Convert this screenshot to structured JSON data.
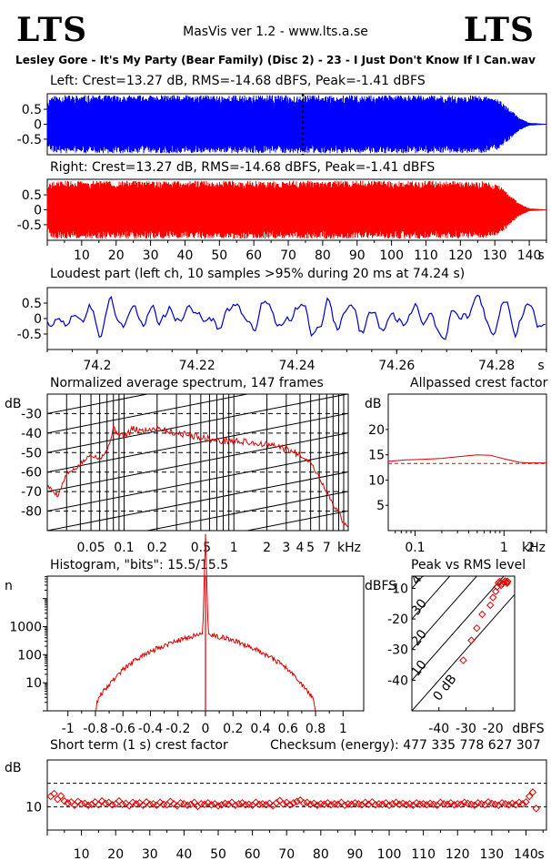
{
  "header": {
    "logo_left": "LTS",
    "logo_right": "LTS",
    "app_version": "MasVis ver 1.2 - www.lts.a.se",
    "file_title": "Lesley Gore - It's My Party (Bear Family) (Disc 2) - 23 - I Just Don't Know If I Can.wav"
  },
  "labels": {
    "left": "Left: Crest=13.27 dB, RMS=-14.68 dBFS, Peak=-1.41 dBFS",
    "right": "Right: Crest=13.27 dB, RMS=-14.68 dBFS, Peak=-1.41 dBFS",
    "loudest": "Loudest part (left  ch, 10 samples >95% during 20 ms at 74.24 s)",
    "spectrum": "Normalized average spectrum, 147 frames",
    "allpass": "Allpassed crest factor",
    "histogram": "Histogram, \"bits\": 15.5/15.5",
    "peakrms": "Peak vs RMS level",
    "shortterm": "Short term (1 s) crest factor",
    "checksum": "Checksum (energy):   477 335 778 627 307"
  },
  "colors": {
    "left": "#0000ff",
    "right": "#ff0000",
    "loudest": "#0000cc",
    "red_line": "#dd0000"
  },
  "chart_data": [
    {
      "id": "left_waveform",
      "type": "area",
      "ylim": [
        -1,
        1
      ],
      "yticks": [
        "0.5",
        "0",
        "-0.5"
      ],
      "xlim_s": [
        0,
        145
      ],
      "marker_s": 74.24,
      "envelope": {
        "x": [
          0,
          1,
          5,
          20,
          60,
          100,
          126,
          131,
          134,
          137,
          140,
          145
        ],
        "amp": [
          0.7,
          0.95,
          0.97,
          0.97,
          0.97,
          0.97,
          0.96,
          0.85,
          0.55,
          0.22,
          0.05,
          0.01
        ]
      }
    },
    {
      "id": "right_waveform",
      "type": "area",
      "ylim": [
        -1,
        1
      ],
      "yticks": [
        "0.5",
        "0",
        "-0.5"
      ],
      "xlim_s": [
        0,
        145
      ],
      "xticks": [
        "10",
        "20",
        "30",
        "40",
        "50",
        "60",
        "70",
        "80",
        "90",
        "100",
        "110",
        "120",
        "130",
        "140"
      ],
      "xunit": "s",
      "envelope": {
        "x": [
          0,
          1,
          5,
          20,
          60,
          100,
          126,
          131,
          134,
          137,
          140,
          145
        ],
        "amp": [
          0.7,
          0.95,
          0.97,
          0.97,
          0.97,
          0.97,
          0.96,
          0.85,
          0.55,
          0.22,
          0.05,
          0.01
        ]
      }
    },
    {
      "id": "loudest_part",
      "type": "line",
      "ylim": [
        -1,
        1
      ],
      "yticks": [
        "0.5",
        "0",
        "-0.5"
      ],
      "xlim_s": [
        74.19,
        74.29
      ],
      "xticks": [
        "74.2",
        "74.22",
        "74.24",
        "74.26",
        "74.28"
      ],
      "xunit": "s"
    },
    {
      "id": "spectrum",
      "type": "line",
      "xscale": "log",
      "xunit": "kHz",
      "yunit": "dB",
      "xlim_khz": [
        0.02,
        11
      ],
      "ylim": [
        -90,
        -20
      ],
      "yticks": [
        "-30",
        "-40",
        "-50",
        "-60",
        "-70",
        "-80"
      ],
      "xticks": [
        "0.05",
        "0.1",
        "0.2",
        "0.5",
        "1",
        "2",
        "3",
        "4",
        "5",
        "7"
      ],
      "x": [
        0.02,
        0.025,
        0.03,
        0.035,
        0.04,
        0.05,
        0.06,
        0.07,
        0.08,
        0.1,
        0.12,
        0.15,
        0.2,
        0.25,
        0.3,
        0.4,
        0.5,
        0.7,
        1,
        1.5,
        2,
        2.5,
        3,
        3.5,
        4,
        5,
        6,
        7,
        8,
        9,
        10
      ],
      "y": [
        -67,
        -72,
        -61,
        -59,
        -56,
        -51,
        -53,
        -49,
        -38,
        -42,
        -38,
        -39,
        -37,
        -39,
        -40,
        -41,
        -42,
        -44,
        -44,
        -45,
        -46,
        -47,
        -48,
        -50,
        -51,
        -55,
        -63,
        -70,
        -77,
        -80,
        -87
      ]
    },
    {
      "id": "allpass_crest",
      "type": "line",
      "xscale": "log",
      "xunit": "kHz",
      "yunit": "dB",
      "xlim_khz": [
        0.05,
        3
      ],
      "ylim": [
        0,
        27
      ],
      "yticks": [
        "20",
        "15",
        "10",
        "5"
      ],
      "xticks": [
        "0.1",
        "1",
        "2"
      ],
      "reference": 13.27,
      "x": [
        0.05,
        0.08,
        0.12,
        0.2,
        0.3,
        0.5,
        0.7,
        1.0,
        1.5,
        2.0,
        3.0
      ],
      "y": [
        13.7,
        14.0,
        14.1,
        14.3,
        14.6,
        15.0,
        14.9,
        14.2,
        13.5,
        13.4,
        13.4
      ]
    },
    {
      "id": "histogram",
      "type": "line",
      "yscale": "log",
      "xlim": [
        -1.15,
        1.15
      ],
      "ylim_log": [
        0,
        4.8
      ],
      "yunit": "n",
      "yticks": [
        "1000",
        "100",
        "10"
      ],
      "xticks": [
        "-1",
        "-0.8",
        "-0.6",
        "-0.4",
        "-0.2",
        "0",
        "0.2",
        "0.4",
        "0.6",
        "0.8",
        "1"
      ],
      "x": [
        -0.8,
        -0.78,
        -0.7,
        -0.6,
        -0.5,
        -0.4,
        -0.3,
        -0.2,
        -0.1,
        -0.02,
        0,
        0.02,
        0.1,
        0.2,
        0.3,
        0.4,
        0.5,
        0.6,
        0.7,
        0.78,
        0.8
      ],
      "y": [
        1,
        3,
        9,
        30,
        70,
        130,
        220,
        330,
        450,
        560,
        2000000,
        560,
        450,
        330,
        220,
        130,
        70,
        30,
        9,
        3,
        1
      ]
    },
    {
      "id": "peak_vs_rms",
      "type": "scatter",
      "xunit": "dBFS",
      "yunit": "dBFS",
      "xlim": [
        -50,
        -12
      ],
      "ylim": [
        -50,
        -6
      ],
      "xticks": [
        "-40",
        "-30",
        "-20"
      ],
      "yticks": [
        "-10",
        "-20",
        "-30",
        "-40"
      ],
      "diagonals": [
        "0 dB",
        "10",
        "20",
        "30",
        "40"
      ],
      "x": [
        -31,
        -28,
        -26,
        -24,
        -21,
        -20,
        -19,
        -18.5,
        -18,
        -17.5,
        -17,
        -16.5,
        -16,
        -15.5,
        -15,
        -14.8,
        -14.6
      ],
      "y": [
        -33.5,
        -27,
        -23,
        -18.5,
        -15.5,
        -13,
        -11,
        -9.5,
        -8.2,
        -7.8,
        -9,
        -8.5,
        -8,
        -7.6,
        -7.9,
        -8.3,
        -7.7
      ]
    },
    {
      "id": "short_term_crest",
      "type": "scatter",
      "yunit": "dB",
      "xlim_s": [
        0,
        146
      ],
      "ylim": [
        5,
        20
      ],
      "yticks": [
        "10"
      ],
      "dashed": [
        15,
        10
      ],
      "xticks": [
        "10",
        "20",
        "30",
        "40",
        "50",
        "60",
        "70",
        "80",
        "90",
        "100",
        "110",
        "120",
        "130",
        "140"
      ],
      "xunit": "s",
      "x": [
        1,
        2,
        3,
        4,
        5,
        6,
        7,
        8,
        9,
        10,
        11,
        12,
        13,
        14,
        15,
        16,
        17,
        18,
        19,
        20,
        21,
        22,
        23,
        24,
        25,
        26,
        27,
        28,
        29,
        30,
        31,
        32,
        33,
        34,
        35,
        36,
        37,
        38,
        39,
        40,
        41,
        42,
        43,
        44,
        45,
        46,
        47,
        48,
        49,
        50,
        51,
        52,
        53,
        54,
        55,
        56,
        57,
        58,
        59,
        60,
        61,
        62,
        63,
        64,
        65,
        66,
        67,
        68,
        69,
        70,
        71,
        72,
        73,
        74,
        75,
        76,
        77,
        78,
        79,
        80,
        81,
        82,
        83,
        84,
        85,
        86,
        87,
        88,
        89,
        90,
        91,
        92,
        93,
        94,
        95,
        96,
        97,
        98,
        99,
        100,
        101,
        102,
        103,
        104,
        105,
        106,
        107,
        108,
        109,
        110,
        111,
        112,
        113,
        114,
        115,
        116,
        117,
        118,
        119,
        120,
        121,
        122,
        123,
        124,
        125,
        126,
        127,
        128,
        129,
        130,
        131,
        132,
        133,
        134,
        135,
        136,
        137,
        138,
        139,
        140,
        141,
        142,
        143
      ],
      "y": [
        12.2,
        12.8,
        11.6,
        12.3,
        11.2,
        10.8,
        11.0,
        10.3,
        11.1,
        10.6,
        10.7,
        10.3,
        10.5,
        11.0,
        10.4,
        11.2,
        10.7,
        10.9,
        10.4,
        10.6,
        11.2,
        10.5,
        10.7,
        10.2,
        10.9,
        10.6,
        10.8,
        10.3,
        11.0,
        10.5,
        10.6,
        10.3,
        10.9,
        10.5,
        10.4,
        11.1,
        10.6,
        10.2,
        10.8,
        10.6,
        10.3,
        10.5,
        10.9,
        10.1,
        10.6,
        10.5,
        10.8,
        10.4,
        10.6,
        10.2,
        10.4,
        10.7,
        10.5,
        10.9,
        10.3,
        10.6,
        10.8,
        10.4,
        10.5,
        10.3,
        10.9,
        10.5,
        10.6,
        10.4,
        10.7,
        10.2,
        10.8,
        11.3,
        10.6,
        10.9,
        10.4,
        10.8,
        11.1,
        11.4,
        10.8,
        10.9,
        10.5,
        10.7,
        10.3,
        10.6,
        10.5,
        10.8,
        10.4,
        10.6,
        10.5,
        10.9,
        10.3,
        10.6,
        10.5,
        10.8,
        10.6,
        10.4,
        10.9,
        10.5,
        11.0,
        10.4,
        10.6,
        10.5,
        10.8,
        10.3,
        10.6,
        10.9,
        10.5,
        10.7,
        10.4,
        10.6,
        10.3,
        10.8,
        10.5,
        10.6,
        10.4,
        10.7,
        10.5,
        10.3,
        10.9,
        10.6,
        10.5,
        10.8,
        10.4,
        10.6,
        10.5,
        10.9,
        10.7,
        10.5,
        10.3,
        10.8,
        10.6,
        10.4,
        11.0,
        10.7,
        10.5,
        10.3,
        10.8,
        10.6,
        10.4,
        10.7,
        10.4,
        10.9,
        10.6,
        11.0,
        12.2,
        13.1,
        9.6
      ]
    }
  ]
}
